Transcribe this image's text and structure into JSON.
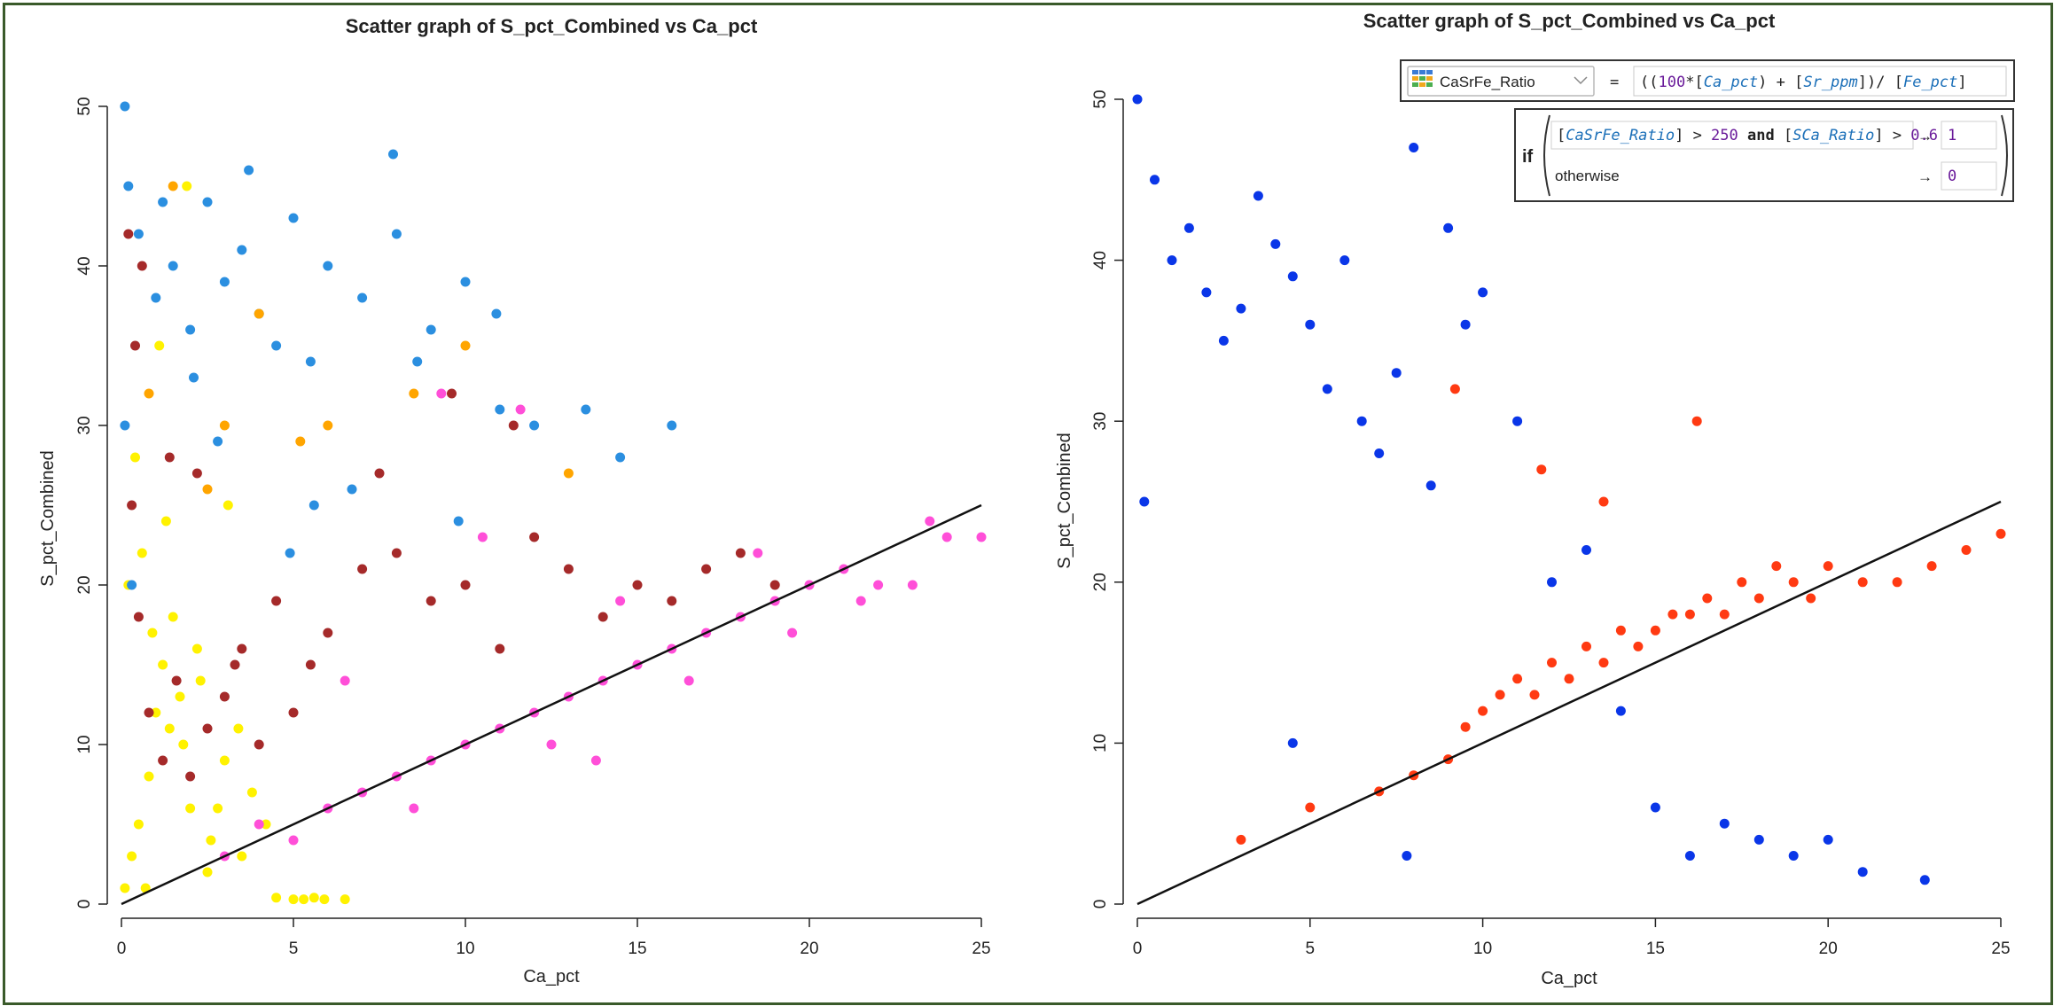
{
  "chart_data": [
    {
      "type": "scatter",
      "title": "Scatter graph of S_pct_Combined vs Ca_pct",
      "xlabel": "Ca_pct",
      "ylabel": "S_pct_Combined",
      "xlim": [
        0,
        25
      ],
      "ylim": [
        0,
        50
      ],
      "xticks": [
        "0",
        "5",
        "10",
        "15",
        "20",
        "25"
      ],
      "yticks": [
        "0",
        "10",
        "20",
        "30",
        "40",
        "50"
      ],
      "grid": false,
      "reference_line": {
        "x": [
          0,
          25
        ],
        "y": [
          0,
          25
        ],
        "color": "#111111"
      },
      "series": [
        {
          "color": "#fff200",
          "x": [
            0.1,
            0.3,
            0.5,
            0.8,
            1.0,
            1.2,
            1.5,
            1.8,
            2.0,
            2.3,
            2.6,
            3.0,
            3.4,
            3.8,
            4.2,
            0.2,
            0.6,
            0.9,
            1.3,
            1.7,
            2.2,
            2.8,
            3.5,
            4.5,
            5.0,
            5.3,
            5.6,
            5.9,
            6.5,
            0.4,
            1.1,
            1.9,
            2.5,
            0.7,
            1.4,
            3.1
          ],
          "y": [
            1,
            3,
            5,
            8,
            12,
            15,
            18,
            10,
            6,
            14,
            4,
            9,
            11,
            7,
            5,
            20,
            22,
            17,
            24,
            13,
            16,
            6,
            3,
            0.4,
            0.3,
            0.3,
            0.4,
            0.3,
            0.3,
            28,
            35,
            45,
            2,
            1,
            11,
            25
          ]
        },
        {
          "color": "#a52a2a",
          "x": [
            0.3,
            0.5,
            0.8,
            1.2,
            1.6,
            2.0,
            2.5,
            3.0,
            3.5,
            4.0,
            4.5,
            5.0,
            5.5,
            6.0,
            7.0,
            8.0,
            9.0,
            10.0,
            11.0,
            12.0,
            13.0,
            14.0,
            15.0,
            16.0,
            17.0,
            18.0,
            19.0,
            0.4,
            1.4,
            2.2,
            3.3,
            7.5,
            9.6,
            11.4,
            0.2,
            0.6
          ],
          "y": [
            25,
            18,
            12,
            9,
            14,
            8,
            11,
            13,
            16,
            10,
            19,
            12,
            15,
            17,
            21,
            22,
            19,
            20,
            16,
            23,
            21,
            18,
            20,
            19,
            21,
            22,
            20,
            35,
            28,
            27,
            15,
            27,
            32,
            30,
            42,
            40
          ]
        },
        {
          "color": "#ff4fd8",
          "x": [
            3,
            4,
            5,
            6,
            7,
            8,
            9,
            10,
            11,
            12,
            13,
            14,
            15,
            16,
            17,
            18,
            19,
            20,
            21,
            22,
            23,
            24,
            25,
            8.5,
            12.5,
            16.5,
            19.5,
            21.5,
            14.5,
            10.5,
            6.5,
            18.5,
            23.5,
            11.6,
            9.3,
            13.8
          ],
          "y": [
            3,
            5,
            4,
            6,
            7,
            8,
            9,
            10,
            11,
            12,
            13,
            14,
            15,
            16,
            17,
            18,
            19,
            20,
            21,
            20,
            20,
            23,
            23,
            6,
            10,
            14,
            17,
            19,
            19,
            23,
            14,
            22,
            24,
            31,
            32,
            9
          ]
        },
        {
          "color": "#2b8fe0",
          "x": [
            0.1,
            0.2,
            0.1,
            0.5,
            1.0,
            1.5,
            2.0,
            2.5,
            3.0,
            3.5,
            4.0,
            4.5,
            5.0,
            5.5,
            6.0,
            7.0,
            8.0,
            9.0,
            10.0,
            11.0,
            12.0,
            13.5,
            14.5,
            16.0,
            3.7,
            7.9,
            2.8,
            5.6,
            9.8,
            6.7,
            4.9,
            1.2,
            0.3,
            2.1,
            8.6,
            10.9
          ],
          "y": [
            50,
            45,
            30,
            42,
            38,
            40,
            36,
            44,
            39,
            41,
            37,
            35,
            43,
            34,
            40,
            38,
            42,
            36,
            39,
            31,
            30,
            31,
            28,
            30,
            46,
            47,
            29,
            25,
            24,
            26,
            22,
            44,
            20,
            33,
            34,
            37
          ]
        },
        {
          "color": "#ffa500",
          "x": [
            1.5,
            3.0,
            4.0,
            6.0,
            8.5,
            10.0,
            13.0,
            0.8,
            2.5,
            5.2
          ],
          "y": [
            45,
            30,
            37,
            30,
            32,
            35,
            27,
            32,
            26,
            29
          ]
        }
      ]
    },
    {
      "type": "scatter",
      "title": "Scatter graph of S_pct_Combined vs Ca_pct",
      "xlabel": "Ca_pct",
      "ylabel": "S_pct_Combined",
      "xlim": [
        0,
        25
      ],
      "ylim": [
        0,
        50
      ],
      "xticks": [
        "0",
        "5",
        "10",
        "15",
        "20",
        "25"
      ],
      "yticks": [
        "0",
        "10",
        "20",
        "30",
        "40",
        "50"
      ],
      "grid": false,
      "reference_line": {
        "x": [
          0,
          25
        ],
        "y": [
          0,
          25
        ],
        "color": "#111111"
      },
      "series": [
        {
          "color": "#0a36e8",
          "x": [
            0,
            0.5,
            1,
            1.5,
            2,
            2.5,
            3,
            3.5,
            4,
            4.5,
            5,
            5.5,
            6,
            6.5,
            7,
            7.5,
            8,
            8.5,
            9,
            9.5,
            10,
            11,
            12,
            13,
            14,
            15,
            16,
            17,
            18,
            19,
            20,
            21,
            22.8,
            4.5,
            7.8,
            0.2
          ],
          "y": [
            50,
            45,
            40,
            42,
            38,
            35,
            37,
            44,
            41,
            39,
            36,
            32,
            40,
            30,
            28,
            33,
            47,
            26,
            42,
            36,
            38,
            30,
            20,
            22,
            12,
            6,
            3,
            5,
            4,
            3,
            4,
            2,
            1.5,
            10,
            3,
            25
          ]
        },
        {
          "color": "#ff3a12",
          "x": [
            3,
            5,
            7,
            8,
            9,
            9.5,
            10,
            10.5,
            11,
            11.5,
            12,
            12.5,
            13,
            13.5,
            14,
            14.5,
            15,
            15.5,
            16,
            16.5,
            17,
            17.5,
            18,
            18.5,
            19,
            19.5,
            20,
            21,
            22,
            23,
            24,
            25,
            9.2,
            11.7,
            13.5,
            16.2
          ],
          "y": [
            4,
            6,
            7,
            8,
            9,
            11,
            12,
            13,
            14,
            13,
            15,
            14,
            16,
            15,
            17,
            16,
            17,
            18,
            18,
            19,
            18,
            20,
            19,
            21,
            20,
            19,
            21,
            20,
            20,
            21,
            22,
            23,
            32,
            27,
            25,
            30
          ]
        }
      ]
    }
  ],
  "calculation": {
    "field_name": "CaSrFe_Ratio",
    "equals": "=",
    "expression": {
      "open": "((",
      "n100": "100",
      "mult": "*",
      "ca_field": "[Ca_pct]",
      "plus": ") + ",
      "sr_field": "[Sr_ppm]",
      "div": "])/ ",
      "fe_field": "[Fe_pct]",
      "close": "]"
    },
    "if_keyword": "if",
    "condition": {
      "field1": "[CaSrFe_Ratio]",
      "op1": " > ",
      "val1": "250",
      "and": " and ",
      "field2": "[SCa_Ratio]",
      "op2": " > ",
      "val2": "0.6"
    },
    "arrow": "→",
    "then_value": "1",
    "otherwise_label": "otherwise",
    "else_value": "0"
  },
  "colors": {
    "frame": "#3a5a2a",
    "field_blue": "#1b6fb8",
    "number_purple": "#6a1b9a"
  }
}
